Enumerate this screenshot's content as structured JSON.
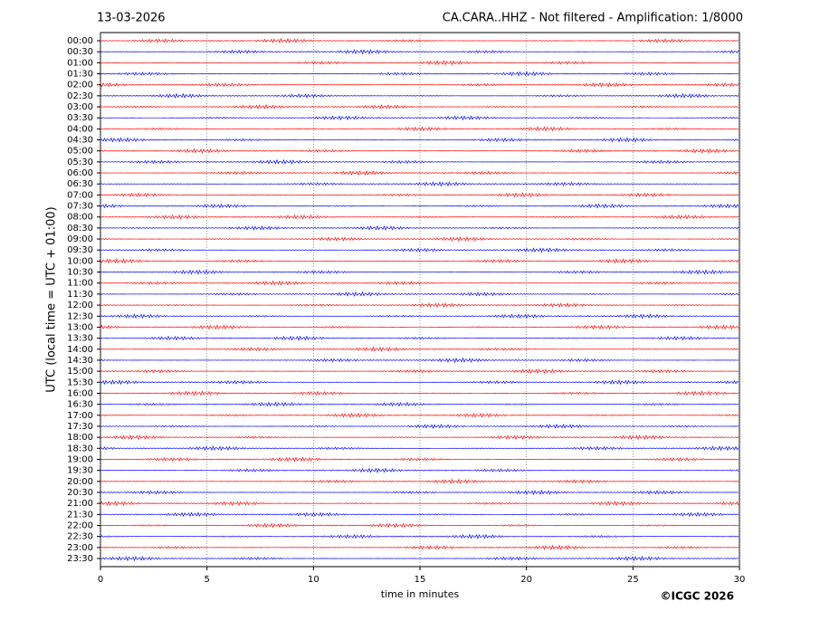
{
  "chart_data": {
    "type": "helicorder",
    "date": "13-03-2026",
    "title": "CA.CARA..HHZ - Not filtered - Amplification: 1/8000",
    "categories": [
      "00:00",
      "00:30",
      "01:00",
      "01:30",
      "02:00",
      "02:30",
      "03:00",
      "03:30",
      "04:00",
      "04:30",
      "05:00",
      "05:30",
      "06:00",
      "06:30",
      "07:00",
      "07:30",
      "08:00",
      "08:30",
      "09:00",
      "09:30",
      "10:00",
      "10:30",
      "11:00",
      "11:30",
      "12:00",
      "12:30",
      "13:00",
      "13:30",
      "14:00",
      "14:30",
      "15:00",
      "15:30",
      "16:00",
      "16:30",
      "17:00",
      "17:30",
      "18:00",
      "18:30",
      "19:00",
      "19:30",
      "20:00",
      "20:30",
      "21:00",
      "21:30",
      "22:00",
      "22:30",
      "23:00",
      "23:30"
    ],
    "xlabel": "time in minutes",
    "ylabel": "UTC (local time = UTC + 01:00)",
    "xlim": [
      0,
      30
    ],
    "xticks": [
      0,
      5,
      10,
      15,
      20,
      25,
      30
    ],
    "grid": true,
    "trace_colors": [
      "#ff0000",
      "#0000ff"
    ],
    "credit": "©ICGC 2026"
  }
}
